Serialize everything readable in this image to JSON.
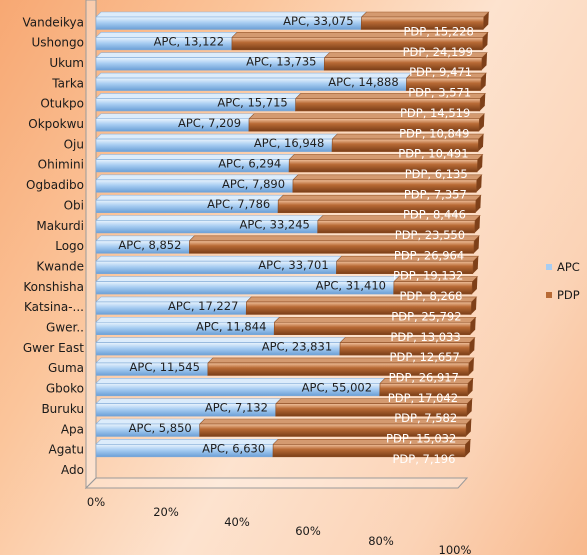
{
  "chart_data": {
    "type": "bar",
    "orientation": "horizontal",
    "stacking": "percent",
    "style": "3d",
    "categories": [
      "Vandeikya",
      "Ushongo",
      "Ukum",
      "Tarka",
      "Otukpo",
      "Okpokwu",
      "Oju",
      "Ohimini",
      "Ogbadibo",
      "Obi",
      "Makurdi",
      "Logo",
      "Kwande",
      "Konshisha",
      "Katsina-...",
      "Gwer..",
      "Gwer East",
      "Guma",
      "Gboko",
      "Buruku",
      "Apa",
      "Agatu",
      "Ado"
    ],
    "series": [
      {
        "name": "APC",
        "color": "#a8cdf2",
        "values": [
          33075,
          13122,
          13735,
          14888,
          15715,
          7209,
          16948,
          6294,
          7890,
          7786,
          33245,
          8852,
          33701,
          31410,
          17227,
          11844,
          23831,
          11545,
          55002,
          7132,
          5850,
          6630,
          null
        ]
      },
      {
        "name": "PDP",
        "color": "#b86a35",
        "values": [
          15228,
          24199,
          9471,
          3571,
          14519,
          10849,
          10491,
          6135,
          7357,
          8446,
          23550,
          26964,
          19132,
          8268,
          25792,
          13033,
          12657,
          26917,
          17042,
          7582,
          15032,
          7196,
          null
        ]
      }
    ],
    "data_labels": {
      "apc": [
        "APC, 33,075",
        "APC, 13,122",
        "APC, 13,735",
        "APC, 14,888",
        "APC, 15,715",
        "APC, 7,209",
        "APC, 16,948",
        "APC, 6,294",
        "APC, 7,890",
        "APC, 7,786",
        "APC, 33,245",
        "APC, 8,852",
        "APC, 33,701",
        "APC, 31,410",
        "APC, 17,227",
        "APC, 11,844",
        "APC, 23,831",
        "APC, 11,545",
        "APC, 55,002",
        "APC, 7,132",
        "APC, 5,850",
        "APC, 6,630"
      ],
      "pdp": [
        "PDP, 15,228",
        "PDP, 24,199",
        "PDP, 9,471",
        "PDP, 3,571",
        "PDP, 14,519",
        "PDP, 10,849",
        "PDP, 10,491",
        "PDP, 6,135",
        "PDP, 7,357",
        "PDP, 8,446",
        "PDP, 23,550",
        "PDP, 26,964",
        "PDP, 19,132",
        "PDP, 8,268",
        "PDP, 25,792",
        "PDP, 13,033",
        "PDP, 12,657",
        "PDP, 26,917",
        "PDP, 17,042",
        "PDP, 7,582",
        "PDP, 15,032",
        "PDP, 7,196"
      ]
    },
    "x_ticks": [
      "0%",
      "20%",
      "40%",
      "60%",
      "80%",
      "100%"
    ],
    "xlim": [
      0,
      100
    ],
    "legend": {
      "position": "right",
      "entries": [
        "APC",
        "PDP"
      ]
    },
    "grid": false,
    "title": "",
    "xlabel": "",
    "ylabel": ""
  }
}
